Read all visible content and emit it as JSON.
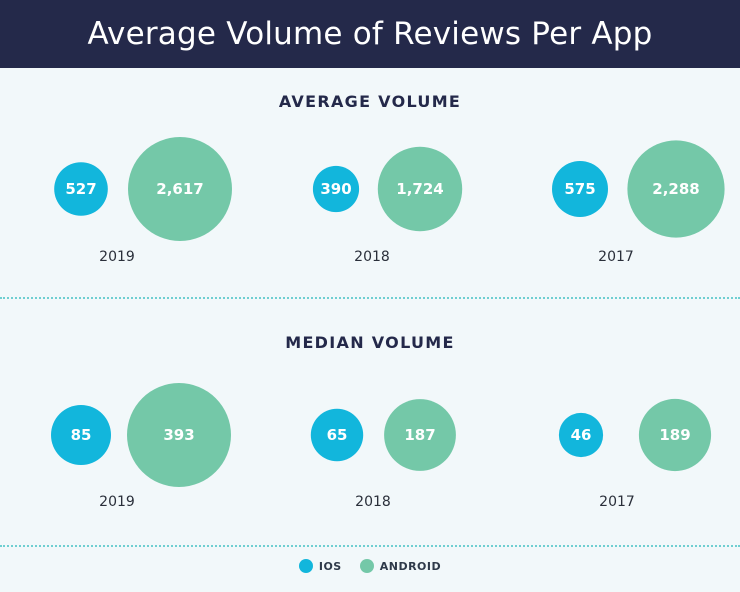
{
  "title": "Average Volume of Reviews Per App",
  "colors": {
    "ios": "#12b6dc",
    "android": "#74c8a8",
    "header_bg": "#24294a",
    "divider": "#6fcfd1"
  },
  "legend": [
    {
      "label": "IOS",
      "color": "#12b6dc"
    },
    {
      "label": "ANDROID",
      "color": "#74c8a8"
    }
  ],
  "chart_data": [
    {
      "type": "bubble",
      "title": "AVERAGE VOLUME",
      "categories": [
        "2019",
        "2018",
        "2017"
      ],
      "series": [
        {
          "name": "IOS",
          "values": [
            527,
            390,
            575
          ],
          "labels": [
            "527",
            "390",
            "575"
          ]
        },
        {
          "name": "ANDROID",
          "values": [
            2617,
            1724,
            2288
          ],
          "labels": [
            "2,617",
            "1,724",
            "2,288"
          ]
        }
      ]
    },
    {
      "type": "bubble",
      "title": "MEDIAN VOLUME",
      "categories": [
        "2019",
        "2018",
        "2017"
      ],
      "series": [
        {
          "name": "IOS",
          "values": [
            85,
            65,
            46
          ],
          "labels": [
            "85",
            "65",
            "46"
          ]
        },
        {
          "name": "ANDROID",
          "values": [
            393,
            187,
            189
          ],
          "labels": [
            "393",
            "187",
            "189"
          ]
        }
      ]
    }
  ]
}
